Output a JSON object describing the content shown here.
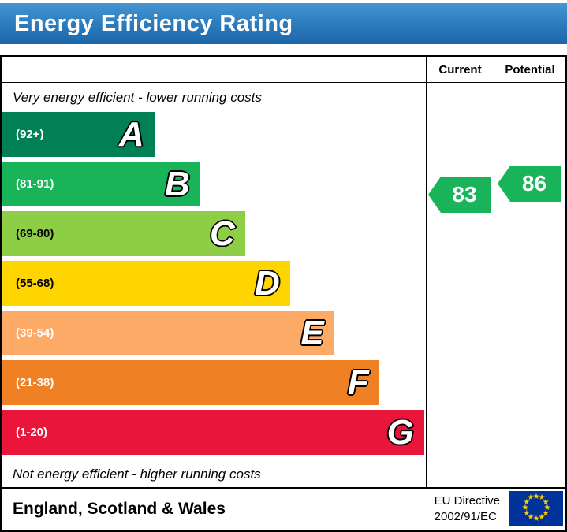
{
  "banner": {
    "title": "Energy Efficiency Rating"
  },
  "table": {
    "current_header": "Current",
    "potential_header": "Potential"
  },
  "notes": {
    "top": "Very energy efficient - lower running costs",
    "bottom": "Not energy efficient - higher running costs"
  },
  "chart_data": {
    "type": "bar",
    "title": "Energy Efficiency Rating",
    "orientation": "horizontal",
    "bands": [
      {
        "letter": "A",
        "range": "(92+)",
        "color": "#008054",
        "width_pct": 36.0,
        "label_color": "#ffffff"
      },
      {
        "letter": "B",
        "range": "(81-91)",
        "color": "#19b459",
        "width_pct": 46.8,
        "label_color": "#ffffff"
      },
      {
        "letter": "C",
        "range": "(69-80)",
        "color": "#8dce46",
        "width_pct": 57.4,
        "label_color": "#000000"
      },
      {
        "letter": "D",
        "range": "(55-68)",
        "color": "#ffd500",
        "width_pct": 68.0,
        "label_color": "#000000"
      },
      {
        "letter": "E",
        "range": "(39-54)",
        "color": "#fcaa65",
        "width_pct": 78.4,
        "label_color": "#ffffff"
      },
      {
        "letter": "F",
        "range": "(21-38)",
        "color": "#ef8023",
        "width_pct": 89.0,
        "label_color": "#ffffff"
      },
      {
        "letter": "G",
        "range": "(1-20)",
        "color": "#e9153b",
        "width_pct": 99.6,
        "label_color": "#ffffff"
      }
    ],
    "current": {
      "value": "83",
      "band": "B",
      "color": "#19b459"
    },
    "potential": {
      "value": "86",
      "band": "B",
      "color": "#19b459"
    }
  },
  "footer": {
    "region": "England, Scotland & Wales",
    "directive_line1": "EU Directive",
    "directive_line2": "2002/91/EC",
    "eu_flag": {
      "background": "#003399",
      "star_color": "#ffcc00"
    }
  }
}
